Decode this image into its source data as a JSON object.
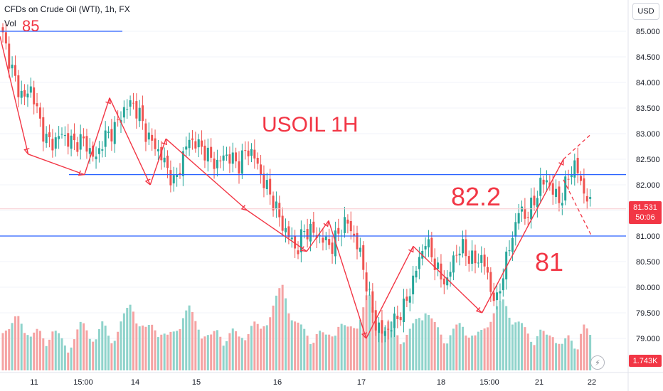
{
  "header": {
    "symbol": "CFDs on Crude Oil (WTI), 1h, FX",
    "vol_label": "Vol"
  },
  "currency_button": "USD",
  "last_price": {
    "value": "81.531",
    "countdown": "50:06"
  },
  "last_volume": "1.743K",
  "annotations": {
    "title": "USOIL 1H",
    "level_85": "85",
    "level_822": "82.2",
    "level_81": "81"
  },
  "colors": {
    "up": "#26a69a",
    "down": "#ef5350",
    "up_vol": "#8fd3cb",
    "down_vol": "#f5a3a3",
    "drawing_red": "#f23645",
    "level_blue": "#2962ff"
  },
  "chart_data": {
    "type": "candlestick",
    "title": "USOIL 1H",
    "y_ticks": [
      "85.000",
      "84.500",
      "84.000",
      "83.500",
      "83.000",
      "82.500",
      "82.000",
      "81.500",
      "81.000",
      "80.500",
      "80.000",
      "79.500",
      "79.000"
    ],
    "ylim": [
      78.8,
      85.2
    ],
    "x_ticks": [
      "11",
      "15:00",
      "14",
      "15",
      "16",
      "17",
      "18",
      "15:00",
      "21",
      "22"
    ],
    "levels": [
      85.0,
      82.2,
      81.0
    ],
    "last_price": 81.531,
    "close_path": [
      84.9,
      84.4,
      83.9,
      83.7,
      83.9,
      83.3,
      82.9,
      82.8,
      83.0,
      82.9,
      82.8,
      82.9,
      82.7,
      82.5,
      82.9,
      83.0,
      83.2,
      83.5,
      83.6,
      83.4,
      83.0,
      82.8,
      82.6,
      82.3,
      82.0,
      82.5,
      82.9,
      82.8,
      82.7,
      82.5,
      82.4,
      82.6,
      82.5,
      82.4,
      82.7,
      82.6,
      82.2,
      81.9,
      81.6,
      81.2,
      81.0,
      80.7,
      81.1,
      81.1,
      81.0,
      80.9,
      80.8,
      81.1,
      81.3,
      81.0,
      80.6,
      79.9,
      79.3,
      79.1,
      79.2,
      79.4,
      79.6,
      80.0,
      80.5,
      80.9,
      80.6,
      80.2,
      80.1,
      80.6,
      80.8,
      80.6,
      80.5,
      80.6,
      80.0,
      79.7,
      80.4,
      80.9,
      81.5,
      81.4,
      81.6,
      82.0,
      82.1,
      81.8,
      81.7,
      82.2,
      82.4,
      81.9,
      81.6
    ],
    "volume_path": [
      0.5,
      0.4,
      0.6,
      0.5,
      0.3,
      0.4,
      0.3,
      0.4,
      0.3,
      0.2,
      0.3,
      0.5,
      0.4,
      0.3,
      0.5,
      0.3,
      0.4,
      0.6,
      0.8,
      0.5,
      0.4,
      0.5,
      0.4,
      0.3,
      0.4,
      0.6,
      0.7,
      0.5,
      0.4,
      0.3,
      0.4,
      0.3,
      0.4,
      0.3,
      0.4,
      0.5,
      0.4,
      0.6,
      0.8,
      1.0,
      0.7,
      0.5,
      0.4,
      0.3,
      0.4,
      0.3,
      0.4,
      0.5,
      0.4,
      0.5,
      0.6,
      0.9,
      0.6,
      0.4,
      0.5,
      0.4,
      0.3,
      0.4,
      0.6,
      0.7,
      0.5,
      0.4,
      0.3,
      0.4,
      0.5,
      0.4,
      0.3,
      0.4,
      0.6,
      0.7,
      0.8,
      0.6,
      0.5,
      0.4,
      0.3,
      0.4,
      0.3,
      0.4,
      0.2,
      0.3,
      0.2,
      0.5,
      0.3
    ],
    "wave_lines": [
      [
        [
          0.0,
          84.9
        ],
        [
          0.045,
          82.6
        ],
        [
          0.135,
          82.2
        ],
        [
          0.175,
          83.7
        ],
        [
          0.24,
          82.0
        ],
        [
          0.265,
          82.9
        ],
        [
          0.395,
          81.5
        ],
        [
          0.49,
          80.7
        ],
        [
          0.525,
          81.3
        ],
        [
          0.585,
          79.0
        ],
        [
          0.66,
          80.8
        ],
        [
          0.77,
          79.5
        ],
        [
          0.9,
          82.5
        ]
      ]
    ],
    "projection": [
      [
        0.9,
        82.5
      ],
      [
        0.945,
        83.0
      ],
      [
        0.9,
        82.1
      ],
      [
        0.945,
        81.0
      ]
    ]
  }
}
